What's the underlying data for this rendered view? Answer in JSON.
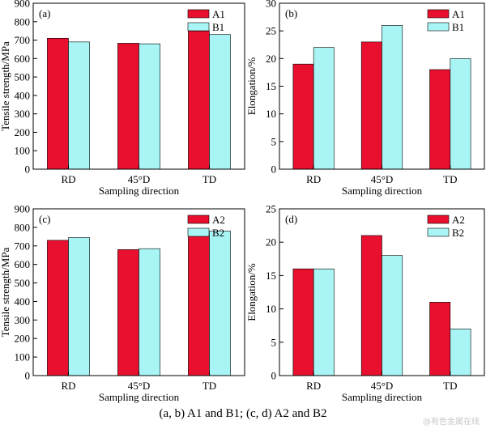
{
  "caption": "(a, b) A1 and B1; (c, d) A2 and B2",
  "watermark": "@有色金属在线",
  "colors": {
    "series1": "#e8102e",
    "series2": "#a9f5f5",
    "outline": "#000000"
  },
  "chart_data": [
    {
      "panel": "(a)",
      "type": "bar",
      "categories": [
        "RD",
        "45°D",
        "TD"
      ],
      "series": [
        {
          "name": "A1",
          "values": [
            710,
            683,
            750
          ]
        },
        {
          "name": "B1",
          "values": [
            690,
            680,
            730
          ]
        }
      ],
      "ylim": [
        0,
        900
      ],
      "yticks": [
        0,
        100,
        200,
        300,
        400,
        500,
        600,
        700,
        800,
        900
      ],
      "xlabel": "Sampling direction",
      "ylabel": "Tensile strength/MPa",
      "legend": "top-right",
      "grid": false
    },
    {
      "panel": "(b)",
      "type": "bar",
      "categories": [
        "RD",
        "45°D",
        "TD"
      ],
      "series": [
        {
          "name": "A1",
          "values": [
            19,
            23,
            18
          ]
        },
        {
          "name": "B1",
          "values": [
            22,
            26,
            20
          ]
        }
      ],
      "ylim": [
        0,
        30
      ],
      "yticks": [
        0,
        5,
        10,
        15,
        20,
        25,
        30
      ],
      "xlabel": "Sampling direction",
      "ylabel": "Elongation/%",
      "legend": "top-right",
      "grid": false
    },
    {
      "panel": "(c)",
      "type": "bar",
      "categories": [
        "RD",
        "45°D",
        "TD"
      ],
      "series": [
        {
          "name": "A2",
          "values": [
            730,
            680,
            760
          ]
        },
        {
          "name": "B2",
          "values": [
            745,
            685,
            780
          ]
        }
      ],
      "ylim": [
        0,
        900
      ],
      "yticks": [
        0,
        100,
        200,
        300,
        400,
        500,
        600,
        700,
        800,
        900
      ],
      "xlabel": "Sampling direction",
      "ylabel": "Tensile strength/MPa",
      "legend": "top-right",
      "grid": false
    },
    {
      "panel": "(d)",
      "type": "bar",
      "categories": [
        "RD",
        "45°D",
        "TD"
      ],
      "series": [
        {
          "name": "A2",
          "values": [
            16,
            21,
            11
          ]
        },
        {
          "name": "B2",
          "values": [
            16,
            18,
            7
          ]
        }
      ],
      "ylim": [
        0,
        25
      ],
      "yticks": [
        0,
        5,
        10,
        15,
        20,
        25
      ],
      "xlabel": "Sampling direction",
      "ylabel": "Elongation/%",
      "legend": "top-right",
      "grid": false
    }
  ]
}
